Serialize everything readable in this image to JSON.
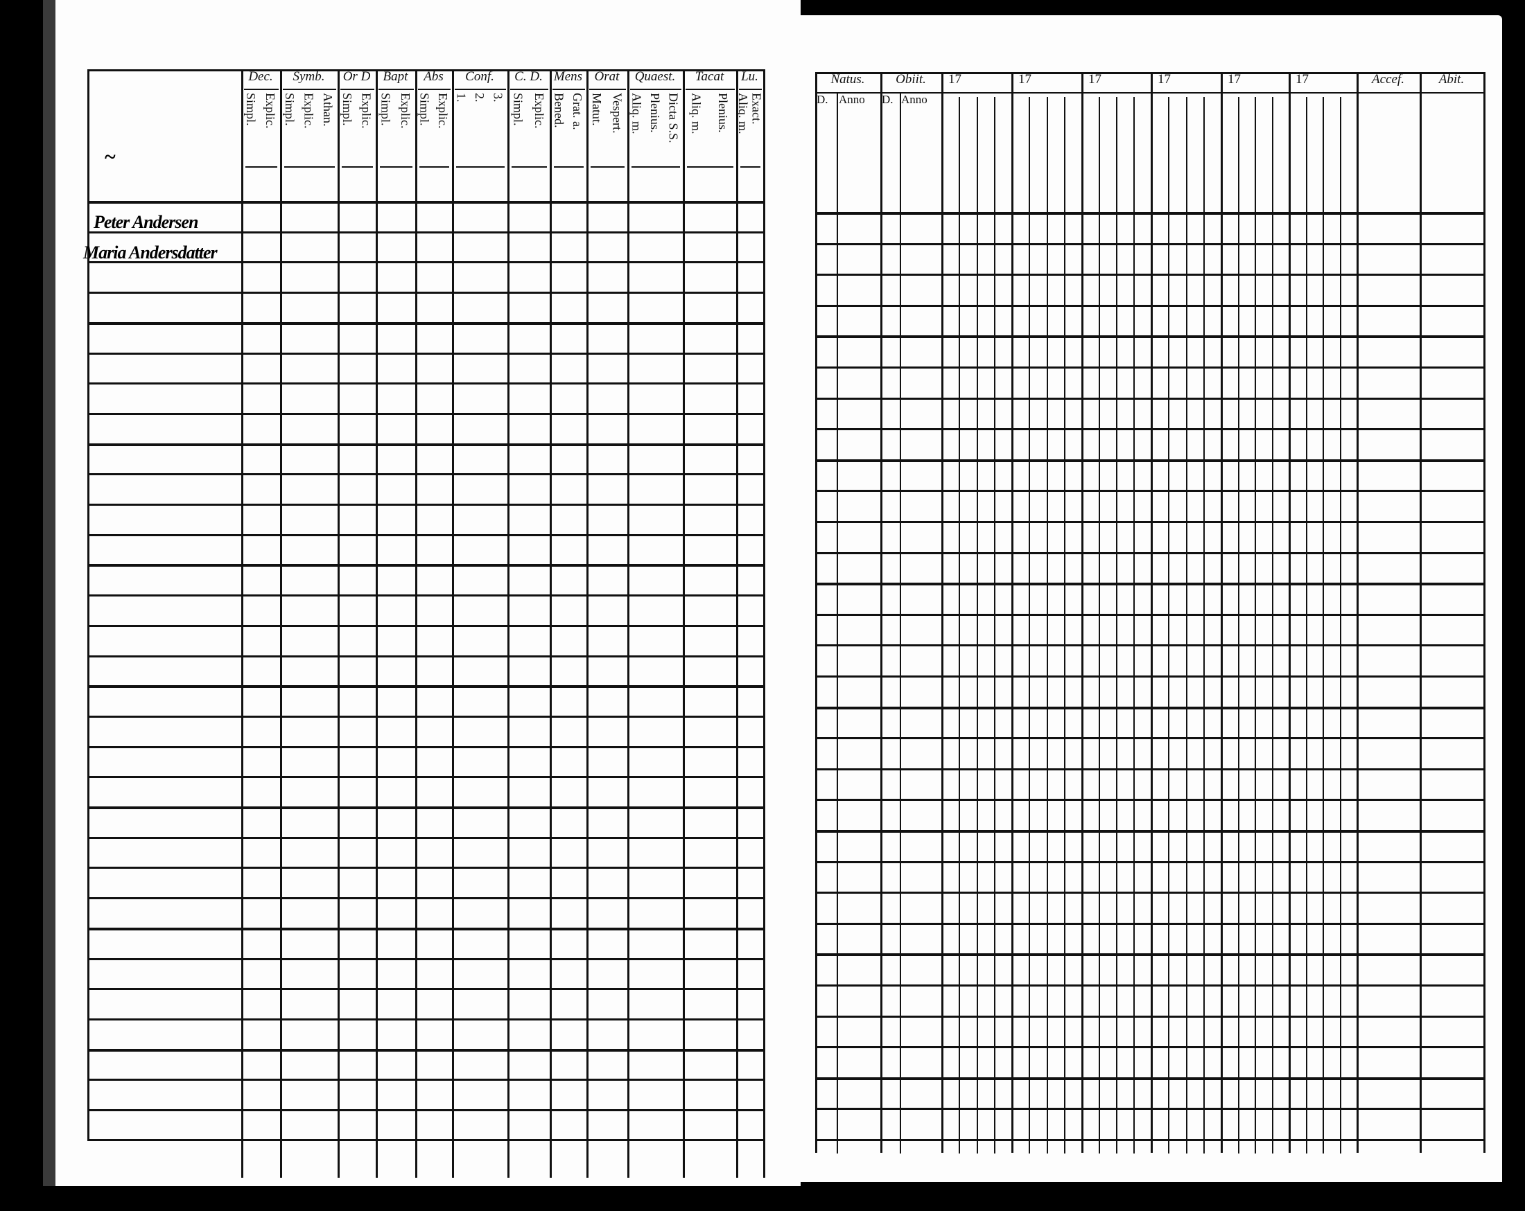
{
  "left_page": {
    "column_groups": [
      {
        "label": "Dec.",
        "subs": [
          "Simpl.",
          "Explic."
        ]
      },
      {
        "label": "Symb.",
        "subs": [
          "Simpl.",
          "Explic.",
          "Athan."
        ]
      },
      {
        "label": "Or D",
        "subs": [
          "Simpl.",
          "Explic."
        ]
      },
      {
        "label": "Bapt",
        "subs": [
          "Simpl.",
          "Explic."
        ]
      },
      {
        "label": "Abs",
        "subs": [
          "Simpl.",
          "Explic."
        ]
      },
      {
        "label": "Conf.",
        "subs": [
          "1.",
          "2.",
          "3."
        ]
      },
      {
        "label": "C. D.",
        "subs": [
          "Simpl.",
          "Explic."
        ]
      },
      {
        "label": "Mens",
        "subs": [
          "Bened.",
          "Grat. a."
        ]
      },
      {
        "label": "Orat",
        "subs": [
          "Matut.",
          "Vespert."
        ]
      },
      {
        "label": "Quaest.",
        "subs": [
          "Aliq. m.",
          "Plenius.",
          "Dicta S.S."
        ]
      },
      {
        "label": "Tacat",
        "subs": [
          "Aliq. m.",
          "Plenius."
        ]
      },
      {
        "label": "Lu.",
        "subs": [
          "Aliq. m.",
          "Exact."
        ]
      }
    ],
    "handwritten_entries": [
      "Peter Andersen",
      "Maria Andersdatter"
    ]
  },
  "right_page": {
    "natus": {
      "label": "Natus.",
      "subs": [
        "D.",
        "Anno"
      ]
    },
    "obiit": {
      "label": "Obiit.",
      "subs": [
        "D.",
        "Anno"
      ]
    },
    "year_columns": [
      "17",
      "17",
      "17",
      "17",
      "17",
      "17"
    ],
    "accessit": "Accef.",
    "abiit": "Abit."
  }
}
